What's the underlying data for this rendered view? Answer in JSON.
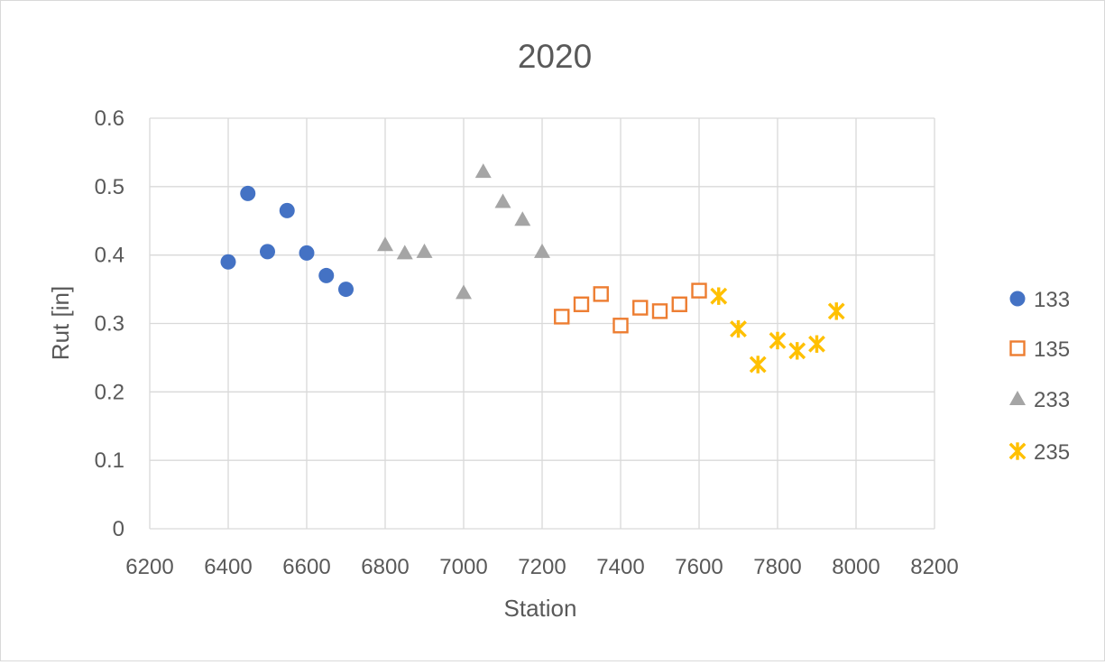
{
  "chart_data": {
    "type": "scatter",
    "title": "2020",
    "xlabel": "Station",
    "ylabel": "Rut [in]",
    "xlim": [
      6200,
      8200
    ],
    "ylim": [
      0,
      0.6
    ],
    "xticks": [
      "6200",
      "6400",
      "6600",
      "6800",
      "7000",
      "7200",
      "7400",
      "7600",
      "7800",
      "8000",
      "8200"
    ],
    "yticks": [
      "0",
      "0.1",
      "0.2",
      "0.3",
      "0.4",
      "0.5",
      "0.6"
    ],
    "grid": true,
    "legend_position": "right",
    "series": [
      {
        "name": "133",
        "marker": "circle",
        "color": "#4472c4",
        "points": [
          [
            6400,
            0.39
          ],
          [
            6450,
            0.49
          ],
          [
            6500,
            0.405
          ],
          [
            6550,
            0.465
          ],
          [
            6600,
            0.403
          ],
          [
            6650,
            0.37
          ],
          [
            6700,
            0.35
          ]
        ]
      },
      {
        "name": "135",
        "marker": "square-open",
        "color": "#ed7d31",
        "points": [
          [
            7250,
            0.31
          ],
          [
            7300,
            0.328
          ],
          [
            7350,
            0.343
          ],
          [
            7400,
            0.297
          ],
          [
            7450,
            0.323
          ],
          [
            7500,
            0.318
          ],
          [
            7550,
            0.328
          ],
          [
            7600,
            0.348
          ]
        ]
      },
      {
        "name": "233",
        "marker": "triangle",
        "color": "#a5a5a5",
        "points": [
          [
            6800,
            0.415
          ],
          [
            6850,
            0.403
          ],
          [
            6900,
            0.405
          ],
          [
            7000,
            0.345
          ],
          [
            7050,
            0.522
          ],
          [
            7100,
            0.478
          ],
          [
            7150,
            0.452
          ],
          [
            7200,
            0.405
          ]
        ]
      },
      {
        "name": "235",
        "marker": "star",
        "color": "#ffc000",
        "points": [
          [
            7650,
            0.34
          ],
          [
            7700,
            0.292
          ],
          [
            7750,
            0.24
          ],
          [
            7800,
            0.275
          ],
          [
            7850,
            0.26
          ],
          [
            7900,
            0.27
          ],
          [
            7950,
            0.318
          ]
        ]
      }
    ]
  }
}
